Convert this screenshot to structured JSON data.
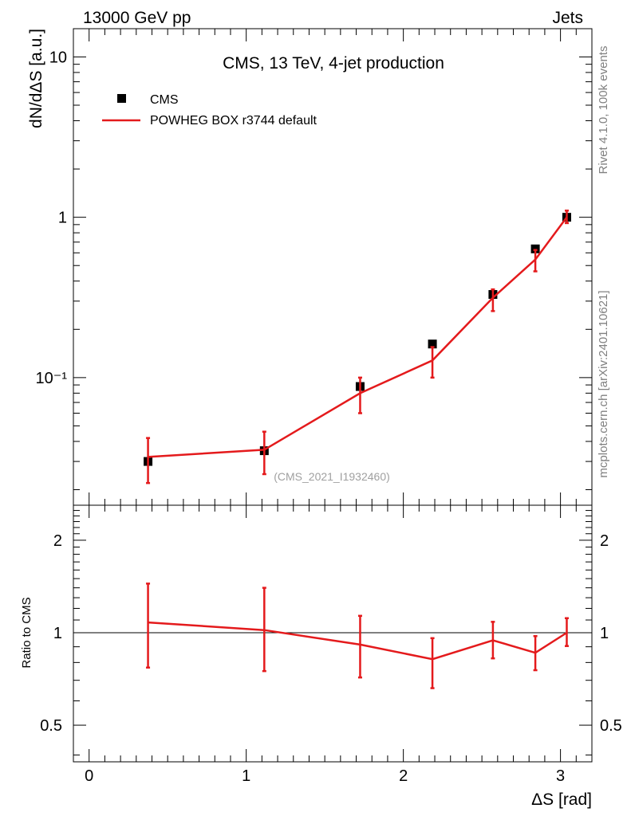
{
  "header": {
    "left": "13000 GeV pp",
    "right": "Jets"
  },
  "side": {
    "rivet": "Rivet 4.1.0,  100k events",
    "mcplots": "mcplots.cern.ch [arXiv:2401.10621]"
  },
  "colors": {
    "mc": "#e41a1c",
    "data": "#000000",
    "watermark": "#a0a0a0",
    "side_text": "#808080"
  },
  "chart_data": [
    {
      "type": "scatter",
      "title": "CMS, 13 TeV, 4-jet production",
      "ylabel": "dN/dΔS [a.u.]",
      "yscale": "log",
      "ylim": [
        0.016,
        15
      ],
      "xlim": [
        -0.1,
        3.2
      ],
      "ytick_labels": [
        "10",
        "1",
        "10⁻¹"
      ],
      "ytick_values": [
        10,
        1,
        0.1
      ],
      "watermark": "(CMS_2021_I1932460)",
      "legend": {
        "position": "top-left",
        "data_label": "CMS",
        "mc_label": "POWHEG BOX r3744 default"
      },
      "series": [
        {
          "name": "CMS",
          "x": [
            0.375,
            1.115,
            1.725,
            2.185,
            2.57,
            2.84,
            3.04
          ],
          "y": [
            0.03,
            0.035,
            0.088,
            0.162,
            0.33,
            0.635,
            1.0
          ]
        },
        {
          "name": "POWHEG BOX r3744 default",
          "x": [
            0.375,
            1.115,
            1.725,
            2.185,
            2.57,
            2.84,
            3.04
          ],
          "y": [
            0.032,
            0.0355,
            0.08,
            0.128,
            0.315,
            0.545,
            1.0
          ],
          "err_low": [
            0.022,
            0.025,
            0.06,
            0.1,
            0.26,
            0.46,
            0.92
          ],
          "err_high": [
            0.042,
            0.046,
            0.1,
            0.155,
            0.355,
            0.625,
            1.1
          ]
        }
      ]
    },
    {
      "type": "line",
      "ylabel": "Ratio to CMS",
      "xlabel": "ΔS [rad]",
      "ylim": [
        0.38,
        2.6
      ],
      "xlim": [
        -0.1,
        3.2
      ],
      "xtick_labels": [
        "0",
        "1",
        "2",
        "3"
      ],
      "xtick_values": [
        0,
        1,
        2,
        3
      ],
      "ytick_labels_left": [
        "2",
        "1",
        "0.5"
      ],
      "ytick_labels_right": [
        "2",
        "1",
        "0.5"
      ],
      "ytick_values": [
        2,
        1,
        0.5
      ],
      "reference": 1,
      "series": [
        {
          "name": "POWHEG BOX r3744 default",
          "x": [
            0.375,
            1.115,
            1.725,
            2.185,
            2.57,
            2.84,
            3.04
          ],
          "y": [
            1.08,
            1.02,
            0.915,
            0.82,
            0.945,
            0.86,
            1.0
          ],
          "err_low": [
            0.77,
            0.75,
            0.715,
            0.66,
            0.825,
            0.755,
            0.905
          ],
          "err_high": [
            1.445,
            1.4,
            1.135,
            0.96,
            1.085,
            0.975,
            1.115
          ]
        }
      ]
    }
  ]
}
